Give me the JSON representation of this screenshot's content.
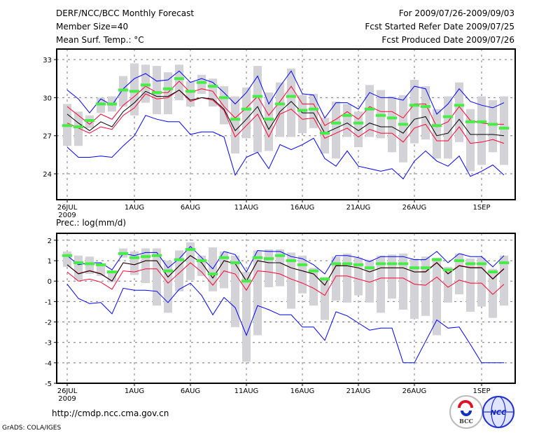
{
  "header": {
    "title": "DERF/NCC/BCC Monthly Forecast",
    "member_size": "Member Size=40",
    "variable": "Mean Surf. Temp.: °C",
    "period": "For 2009/07/26-2009/09/03",
    "started": "Fcst Started Refer Date 2009/07/25",
    "produced": "Fcst Produced Date 2009/07/26"
  },
  "footer": {
    "url": "http://cmdp.ncc.cma.gov.cn",
    "grads": "GrADS: COLA/IGES",
    "logo_bcc": "BCC",
    "logo_ncc": "NCC"
  },
  "colors": {
    "max_min": "#0000ff",
    "spread": "#ff0033",
    "mean": "#000000",
    "marker": "#44ee44",
    "box": "#d3d3d7"
  },
  "chart_data": [
    {
      "type": "line",
      "title": "Mean Surf. Temp.: °C",
      "x_start": "2009-07-26",
      "days": 40,
      "xtick_labels": [
        {
          "day": 0,
          "label": "26JUL"
        },
        {
          "day": 6,
          "label": "1AUG"
        },
        {
          "day": 11,
          "label": "6AUG"
        },
        {
          "day": 16,
          "label": "11AUG"
        },
        {
          "day": 21,
          "label": "16AUG"
        },
        {
          "day": 26,
          "label": "21AUG"
        },
        {
          "day": 31,
          "label": "26AUG"
        },
        {
          "day": 37,
          "label": "1SEP"
        }
      ],
      "xyear": "2009",
      "yticks": [
        24,
        27,
        30,
        33
      ],
      "ylim": [
        21.96,
        33.83
      ],
      "grid": true,
      "box_top": [
        29.5,
        28.9,
        28.6,
        30.0,
        30.1,
        31.7,
        32.7,
        32.6,
        32.5,
        32.0,
        32.6,
        31.3,
        31.8,
        31.5,
        30.9,
        30.1,
        30.8,
        32.5,
        30.4,
        31.2,
        32.3,
        30.2,
        30.3,
        28.4,
        29.7,
        29.5,
        28.9,
        31.0,
        30.6,
        30.1,
        30.2,
        31.4,
        30.9,
        29.1,
        30.1,
        31.2,
        29.1,
        30.1,
        29.8,
        30.1
      ],
      "box_bottom": [
        26.2,
        26.2,
        27.6,
        28.8,
        28.9,
        29.3,
        28.6,
        29.6,
        28.7,
        28.7,
        29.8,
        29.3,
        30.3,
        29.3,
        27.9,
        25.6,
        26.8,
        25.7,
        25.8,
        26.9,
        26.9,
        27.2,
        27.6,
        25.6,
        25.2,
        26.9,
        26.1,
        26.9,
        26.8,
        25.7,
        24.9,
        26.4,
        26.7,
        25.2,
        25.2,
        26.5,
        24.2,
        24.7,
        25.7,
        24.7
      ],
      "series": [
        {
          "name": "max",
          "color": "#0000ff",
          "values": [
            30.6,
            29.9,
            28.8,
            29.9,
            29.4,
            30.7,
            31.5,
            31.9,
            31.3,
            31.4,
            32.1,
            31.2,
            31.5,
            31.2,
            30.4,
            29.5,
            30.4,
            31.7,
            29.5,
            30.9,
            32.1,
            30.3,
            30.2,
            28.4,
            29.6,
            29.6,
            29.1,
            30.4,
            30.0,
            30.0,
            29.8,
            30.9,
            30.7,
            28.7,
            29.5,
            30.7,
            29.7,
            29.4,
            29.2,
            29.6
          ]
        },
        {
          "name": "min",
          "color": "#0000ff",
          "values": [
            26.1,
            25.3,
            25.3,
            25.4,
            25.3,
            26.2,
            27.0,
            28.6,
            28.3,
            28.1,
            28.1,
            27.1,
            27.3,
            27.3,
            26.9,
            23.9,
            25.3,
            25.7,
            24.4,
            26.3,
            25.9,
            26.3,
            26.8,
            25.2,
            24.6,
            25.8,
            24.6,
            24.4,
            24.2,
            24.4,
            23.6,
            25.0,
            25.8,
            25.0,
            24.6,
            25.4,
            23.8,
            24.2,
            24.7,
            23.9
          ]
        },
        {
          "name": "upper",
          "color": "#ff0033",
          "values": [
            29.3,
            28.6,
            27.9,
            28.7,
            28.3,
            29.4,
            30.1,
            30.9,
            30.4,
            30.4,
            31.3,
            30.4,
            30.7,
            30.5,
            29.3,
            28.4,
            29.2,
            30.1,
            28.6,
            29.7,
            30.9,
            29.5,
            29.5,
            27.8,
            28.3,
            28.9,
            28.3,
            29.3,
            28.9,
            28.9,
            28.4,
            29.5,
            29.5,
            27.7,
            28.1,
            29.3,
            28.2,
            28.0,
            27.9,
            27.9
          ]
        },
        {
          "name": "lower",
          "color": "#ff0033",
          "values": [
            28.0,
            27.6,
            27.2,
            27.7,
            27.5,
            28.6,
            29.2,
            30.3,
            29.9,
            30.0,
            30.6,
            29.7,
            30.0,
            29.8,
            29.0,
            26.9,
            27.8,
            28.7,
            26.9,
            28.7,
            29.1,
            28.3,
            28.4,
            26.8,
            27.2,
            27.6,
            26.9,
            27.5,
            27.2,
            27.2,
            26.5,
            27.6,
            27.9,
            26.6,
            26.6,
            27.7,
            26.4,
            26.5,
            26.7,
            26.4
          ]
        },
        {
          "name": "mean",
          "color": "#000000",
          "values": [
            28.7,
            28.0,
            27.4,
            28.1,
            27.7,
            28.9,
            29.6,
            30.5,
            30.1,
            30.1,
            30.6,
            29.8,
            30.0,
            29.9,
            29.1,
            27.4,
            28.3,
            29.3,
            27.5,
            28.9,
            29.7,
            28.8,
            28.8,
            27.2,
            27.6,
            28.0,
            27.4,
            28.0,
            27.7,
            27.7,
            27.2,
            28.3,
            28.5,
            27.0,
            27.2,
            28.3,
            27.1,
            27.1,
            27.1,
            27.0
          ]
        }
      ],
      "markers": [
        27.8,
        27.7,
        28.2,
        29.5,
        29.5,
        30.6,
        30.5,
        31.0,
        30.4,
        30.7,
        31.5,
        30.5,
        31.2,
        30.9,
        30.0,
        28.3,
        29.1,
        30.1,
        28.3,
        29.5,
        30.1,
        29.0,
        29.1,
        27.2,
        28.0,
        28.6,
        28.0,
        29.1,
        28.6,
        28.4,
        27.9,
        29.4,
        29.3,
        27.8,
        28.5,
        29.4,
        28.1,
        28.1,
        27.9,
        27.6
      ]
    },
    {
      "type": "line",
      "title": "Prec.: log(mm/d)",
      "x_start": "2009-07-26",
      "days": 40,
      "xtick_labels": [
        {
          "day": 0,
          "label": "26JUL"
        },
        {
          "day": 6,
          "label": "1AUG"
        },
        {
          "day": 11,
          "label": "6AUG"
        },
        {
          "day": 16,
          "label": "11AUG"
        },
        {
          "day": 21,
          "label": "16AUG"
        },
        {
          "day": 26,
          "label": "21AUG"
        },
        {
          "day": 31,
          "label": "26AUG"
        },
        {
          "day": 37,
          "label": "1SEP"
        }
      ],
      "xyear": "2009",
      "yticks": [
        -5,
        -4,
        -3,
        -2,
        -1,
        0,
        1,
        2
      ],
      "ylim": [
        -5,
        2.34
      ],
      "grid": true,
      "box_top": [
        1.45,
        1.25,
        1.2,
        0.8,
        0.4,
        1.6,
        1.45,
        1.6,
        1.6,
        1.0,
        1.5,
        1.9,
        1.25,
        1.65,
        1.45,
        1.25,
        0.45,
        1.5,
        1.55,
        1.55,
        1.4,
        1.25,
        0.65,
        0.2,
        1.2,
        1.35,
        1.15,
        1.05,
        1.25,
        1.3,
        1.35,
        1.1,
        1.2,
        1.15,
        0.7,
        1.35,
        1.1,
        1.15,
        0.6,
        1.25
      ],
      "box_bottom": [
        0.7,
        0.05,
        0.35,
        0.25,
        -0.05,
        1.15,
        0.3,
        -0.1,
        -1.2,
        -1.55,
        -0.5,
        0.05,
        0.25,
        -0.5,
        -0.35,
        -2.25,
        -3.95,
        -2.65,
        -0.3,
        -0.25,
        -1.35,
        -0.6,
        -1.2,
        -1.9,
        -0.95,
        -1.05,
        -0.7,
        -1.05,
        -1.55,
        -0.85,
        -1.4,
        -1.85,
        -1.7,
        -2.65,
        -1.05,
        -0.65,
        -1.5,
        -1.25,
        -1.8,
        -1.2
      ],
      "series": [
        {
          "name": "max",
          "color": "#0000ff",
          "values": [
            1.25,
            0.8,
            0.9,
            0.9,
            0.55,
            1.35,
            1.25,
            1.4,
            1.4,
            0.65,
            1.1,
            1.7,
            1.15,
            0.6,
            1.45,
            1.3,
            0.45,
            1.5,
            1.45,
            1.45,
            1.2,
            1.1,
            0.8,
            0.35,
            1.25,
            1.25,
            1.15,
            0.95,
            1.2,
            1.2,
            1.2,
            1.05,
            1.05,
            1.45,
            0.9,
            1.35,
            1.2,
            1.2,
            0.7,
            1.25
          ]
        },
        {
          "name": "min",
          "color": "#0000ff",
          "values": [
            -0.15,
            -0.85,
            -1.1,
            -1.05,
            -1.6,
            -0.35,
            -0.45,
            -0.45,
            -0.5,
            -1.05,
            -0.4,
            -0.1,
            -0.7,
            -1.65,
            -0.8,
            -1.3,
            -2.65,
            -1.2,
            -1.4,
            -1.65,
            -1.65,
            -2.25,
            -2.25,
            -2.9,
            -1.5,
            -1.7,
            -2.05,
            -2.4,
            -2.3,
            -2.3,
            -4.0,
            -4.0,
            -2.95,
            -1.9,
            -2.3,
            -2.25,
            -3.1,
            -4.0,
            -4.0,
            -4.0
          ]
        },
        {
          "name": "upper",
          "color": "#ff0033",
          "values": [
            0.8,
            0.37,
            0.52,
            0.37,
            0.0,
            0.9,
            0.8,
            1.0,
            1.0,
            0.2,
            0.75,
            1.25,
            0.9,
            0.15,
            1.0,
            0.85,
            0.0,
            1.0,
            0.9,
            0.9,
            0.65,
            0.5,
            0.35,
            -0.2,
            0.77,
            0.75,
            0.65,
            0.45,
            0.65,
            0.65,
            0.65,
            0.45,
            0.47,
            0.92,
            0.37,
            0.77,
            0.67,
            0.67,
            0.12,
            0.62
          ]
        },
        {
          "name": "lower",
          "color": "#ff0033",
          "values": [
            0.45,
            0.0,
            0.1,
            -0.05,
            -0.4,
            0.5,
            0.45,
            0.6,
            0.6,
            -0.1,
            0.4,
            0.9,
            0.45,
            -0.2,
            0.5,
            0.35,
            -0.45,
            0.5,
            0.45,
            0.35,
            0.1,
            -0.1,
            -0.35,
            -0.7,
            0.25,
            0.25,
            0.1,
            -0.05,
            0.15,
            0.15,
            0.15,
            -0.15,
            -0.2,
            0.2,
            -0.3,
            0.05,
            -0.1,
            -0.1,
            -0.65,
            -0.15
          ]
        },
        {
          "name": "mean",
          "color": "#000000",
          "values": [
            0.8,
            0.35,
            0.5,
            0.35,
            0.0,
            0.9,
            0.8,
            1.0,
            1.0,
            0.2,
            0.75,
            1.25,
            0.9,
            0.15,
            1.0,
            0.85,
            0.0,
            1.0,
            0.9,
            0.9,
            0.65,
            0.5,
            0.35,
            -0.2,
            0.75,
            0.75,
            0.65,
            0.45,
            0.65,
            0.65,
            0.65,
            0.45,
            0.45,
            0.9,
            0.35,
            0.75,
            0.65,
            0.65,
            0.1,
            0.6
          ]
        }
      ],
      "markers": [
        1.25,
        0.9,
        0.85,
        0.8,
        0.45,
        1.35,
        1.15,
        1.2,
        1.25,
        0.5,
        1.05,
        1.55,
        1.0,
        0.35,
        1.15,
        0.9,
        0.0,
        1.15,
        1.1,
        1.25,
        1.0,
        0.8,
        0.5,
        0.1,
        0.85,
        0.85,
        0.8,
        0.65,
        0.85,
        0.85,
        0.85,
        0.65,
        0.65,
        1.05,
        0.55,
        1.0,
        0.85,
        0.85,
        0.45,
        0.9
      ]
    }
  ]
}
